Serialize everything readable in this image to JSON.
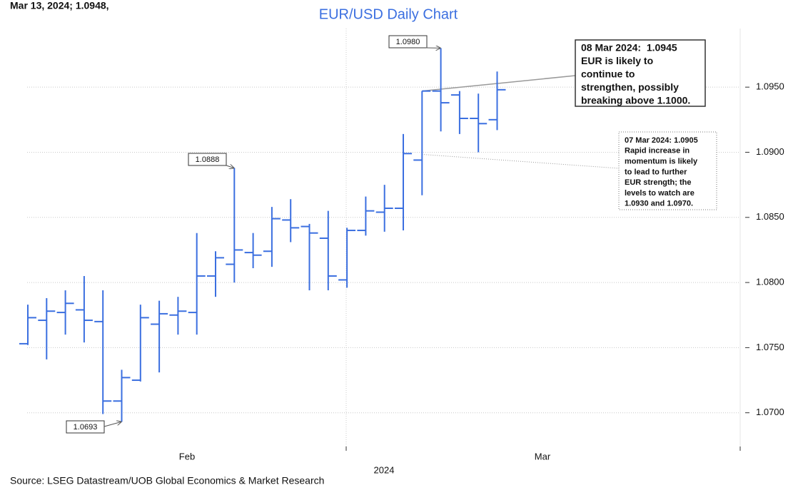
{
  "chart_data": {
    "type": "ohlc",
    "header": "Mar 13, 2024; 1.0948,",
    "title": "EUR/USD Daily Chart",
    "source": "Source: LSEG Datastream/UOB Global Economics & Market Research",
    "color": "#3b6fe0",
    "categories": [
      null,
      null,
      null,
      null,
      null,
      null,
      null,
      null,
      null,
      null,
      null,
      null,
      null,
      null,
      null,
      null,
      null,
      null,
      null,
      null,
      null,
      null,
      null,
      null,
      null,
      null
    ],
    "open": [
      1.0753,
      1.0771,
      1.0777,
      1.0779,
      1.077,
      1.0709,
      1.0725,
      1.0768,
      1.0775,
      1.0777,
      1.0805,
      1.0814,
      1.0823,
      1.0824,
      1.0848,
      1.0843,
      1.0834,
      1.0802,
      1.084,
      1.0854,
      1.0857,
      1.0894,
      1.0947,
      1.0944,
      1.0926,
      1.0925
    ],
    "high": [
      1.0783,
      1.0788,
      1.0794,
      1.0805,
      1.0794,
      1.0733,
      1.0783,
      1.0786,
      1.0789,
      1.0838,
      1.0824,
      1.0888,
      1.0838,
      1.0858,
      1.0864,
      1.0845,
      1.0855,
      1.0842,
      1.0866,
      1.0875,
      1.0914,
      1.0947,
      1.098,
      1.0947,
      1.0945,
      1.0962
    ],
    "low": [
      1.0752,
      1.0741,
      1.076,
      1.0754,
      1.0699,
      1.0693,
      1.0724,
      1.0731,
      1.076,
      1.076,
      1.0789,
      1.08,
      1.0811,
      1.0812,
      1.0831,
      1.0794,
      1.0794,
      1.0796,
      1.0836,
      1.0839,
      1.084,
      1.0867,
      1.0916,
      1.0914,
      1.09,
      1.0917
    ],
    "close": [
      1.0773,
      1.0778,
      1.0784,
      1.0771,
      1.0709,
      1.0727,
      1.0773,
      1.0776,
      1.0778,
      1.0805,
      1.0819,
      1.0825,
      1.0821,
      1.0849,
      1.0842,
      1.0838,
      1.0805,
      1.084,
      1.0855,
      1.0857,
      1.0899,
      1.0947,
      1.0938,
      1.0926,
      1.0922,
      1.0948
    ],
    "ylim": [
      1.0673,
      1.0995
    ],
    "yticks": [
      {
        "value": 1.07,
        "label": "1.0700"
      },
      {
        "value": 1.075,
        "label": "1.0750"
      },
      {
        "value": 1.08,
        "label": "1.0800"
      },
      {
        "value": 1.085,
        "label": "1.0850"
      },
      {
        "value": 1.09,
        "label": "1.0900"
      },
      {
        "value": 1.095,
        "label": "1.0950"
      }
    ],
    "xtick_labels": [
      "Feb",
      "Mar"
    ],
    "xlabel": "2024",
    "grid": true,
    "callouts": [
      "1.0693",
      "1.0888",
      "1.0980"
    ],
    "notes": [
      {
        "lines": [
          "08 Mar 2024:  1.0945",
          "EUR is likely to",
          "continue to",
          "strengthen, possibly",
          "breaking above 1.1000."
        ]
      },
      {
        "lines": [
          "07 Mar 2024: 1.0905",
          "Rapid increase in",
          "momentum is likely",
          "to lead to further",
          "EUR strength; the",
          "levels to watch are",
          "1.0930 and 1.0970."
        ]
      }
    ]
  }
}
